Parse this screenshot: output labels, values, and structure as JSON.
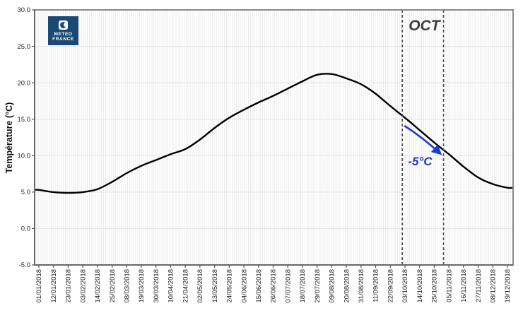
{
  "logo": {
    "line1": "METEO",
    "line2": "FRANCE"
  },
  "colors": {
    "logo_bg": "#1a4a74",
    "curve": "#000000",
    "annotation_blue": "#1c3bd4",
    "oct_label": "#3c3c3c",
    "axis_border": "#8a8a8a",
    "axis_line": "#555555",
    "h_gridline": "#e3e3e3",
    "tick_label": "#222222"
  },
  "chart_data": {
    "type": "line",
    "title": "",
    "ylabel": "Température (°C)",
    "xlabel": "",
    "ylim": [
      -5,
      30
    ],
    "ytick_values": [
      30,
      25,
      20,
      15,
      10,
      5,
      0,
      -5
    ],
    "ytick_labels": [
      "30.0",
      "25.0",
      "20.0",
      "15.0",
      "10.0",
      "5.0",
      "0.0",
      "-5.0"
    ],
    "x_labels": [
      "01/01/2018",
      "12/01/2018",
      "23/01/2018",
      "03/02/2018",
      "14/02/2018",
      "25/02/2018",
      "08/03/2018",
      "19/03/2018",
      "30/03/2018",
      "10/04/2018",
      "21/04/2018",
      "02/05/2018",
      "13/05/2018",
      "24/05/2018",
      "04/06/2018",
      "15/06/2018",
      "26/06/2018",
      "07/07/2018",
      "18/07/2018",
      "29/07/2018",
      "09/08/2018",
      "20/08/2018",
      "31/08/2018",
      "11/09/2018",
      "22/09/2018",
      "03/10/2018",
      "14/10/2018",
      "25/10/2018",
      "05/11/2018",
      "16/11/2018",
      "27/11/2018",
      "08/12/2018",
      "19/12/2018"
    ],
    "series": [
      {
        "name": "temperature",
        "values": [
          5.3,
          5.0,
          4.9,
          5.0,
          5.4,
          6.4,
          7.6,
          8.6,
          9.4,
          10.2,
          10.9,
          12.2,
          13.8,
          15.2,
          16.3,
          17.3,
          18.2,
          19.2,
          20.2,
          21.1,
          21.2,
          20.6,
          19.8,
          18.5,
          16.8,
          15.2,
          13.5,
          11.8,
          10.2,
          8.5,
          7.0,
          6.1,
          5.6
        ]
      }
    ],
    "grid": {
      "horizontal_step": 5,
      "vertical": "fine daily lines"
    },
    "legend": null,
    "annotations": {
      "month_label": "OCT",
      "month_start_date": "01/10/2018",
      "month_end_date": "31/10/2018",
      "arrow_label": "-5°C"
    }
  }
}
